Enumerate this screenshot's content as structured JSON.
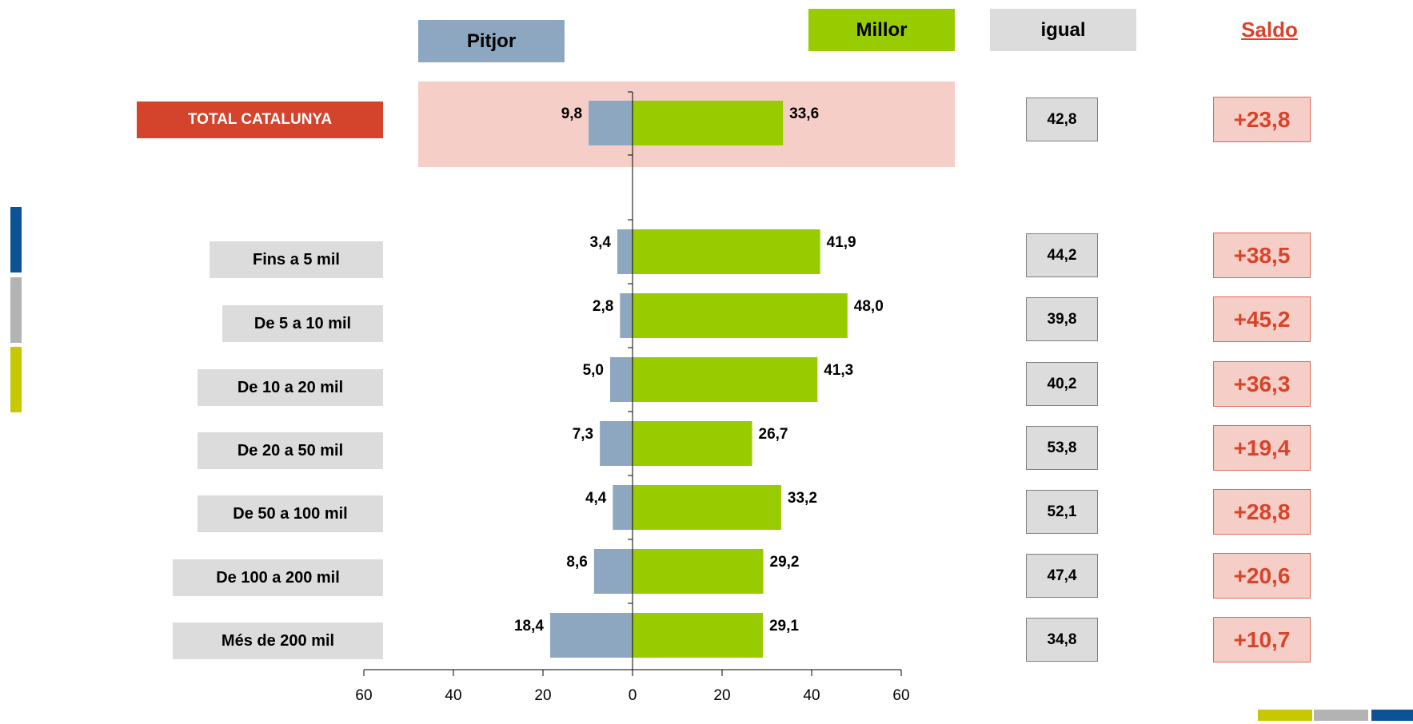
{
  "headers": {
    "pitjor": "Pitjor",
    "millor": "Millor",
    "igual": "igual",
    "saldo": "Saldo"
  },
  "colors": {
    "pitjor": "#8ea7c1",
    "millor": "#99cc00",
    "total_label": "#d4432b",
    "saldo_text": "#d9432a",
    "band": "#f5cfc7",
    "label_bg": "#dcdcdc",
    "deco_blue": "#0b5394",
    "deco_gray": "#b3b3b3",
    "deco_yellow": "#c8c800"
  },
  "chart_data": {
    "type": "bar",
    "orientation": "horizontal-diverging",
    "categories": [
      "TOTAL CATALUNYA",
      "Fins a 5 mil",
      "De 5 a 10 mil",
      "De 10 a 20 mil",
      "De 20 a 50 mil",
      "De 50 a 100 mil",
      "De 100 a 200 mil",
      "Més de 200 mil"
    ],
    "series": [
      {
        "name": "Pitjor",
        "values": [
          9.8,
          3.4,
          2.8,
          5.0,
          7.3,
          4.4,
          8.6,
          18.4
        ],
        "labels": [
          "9,8",
          "3,4",
          "2,8",
          "5,0",
          "7,3",
          "4,4",
          "8,6",
          "18,4"
        ]
      },
      {
        "name": "Millor",
        "values": [
          33.6,
          41.9,
          48.0,
          41.3,
          26.7,
          33.2,
          29.2,
          29.1
        ],
        "labels": [
          "33,6",
          "41,9",
          "48,0",
          "41,3",
          "26,7",
          "33,2",
          "29,2",
          "29,1"
        ]
      }
    ],
    "igual": [
      "42,8",
      "44,2",
      "39,8",
      "40,2",
      "53,8",
      "52,1",
      "47,4",
      "34,8"
    ],
    "saldo": [
      "+23,8",
      "+38,5",
      "+45,2",
      "+36,3",
      "+19,4",
      "+28,8",
      "+20,6",
      "+10,7"
    ],
    "xlim": [
      -60,
      60
    ],
    "xticks": [
      -60,
      -40,
      -20,
      0,
      20,
      40,
      60
    ],
    "xtick_labels": [
      "60",
      "40",
      "20",
      "0",
      "20",
      "40",
      "60"
    ],
    "xlabel": "",
    "ylabel": "",
    "grid": false,
    "legend": "top"
  }
}
